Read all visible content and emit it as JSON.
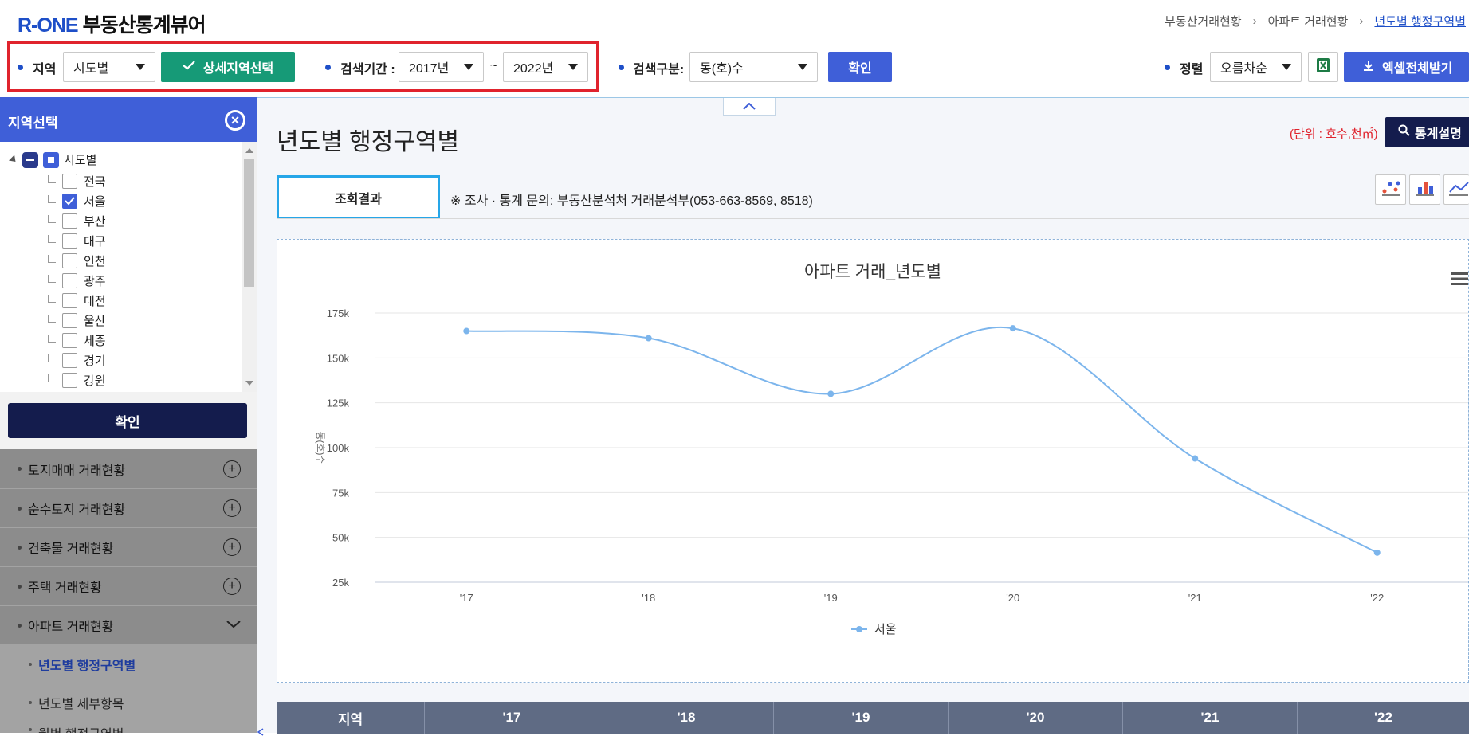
{
  "header": {
    "brand": "R-ONE",
    "app_name": "부동산통계뷰어",
    "breadcrumbs": [
      "부동산거래현황",
      "아파트 거래현황",
      "년도별 행정구역별"
    ]
  },
  "filters": {
    "region_label": "지역",
    "region_value": "시도별",
    "detail_region_button": "상세지역선택",
    "period_label": "검색기간 :",
    "period_from": "2017년",
    "period_sep": "~",
    "period_to": "2022년",
    "search_type_label": "검색구분:",
    "search_type_value": "동(호)수",
    "confirm_button": "확인",
    "sort_label": "정렬",
    "sort_value": "오름차순",
    "excel_all_button": "엑셀전체받기"
  },
  "sidebar": {
    "region_panel_title": "지역선택",
    "tree_root": "시도별",
    "tree_items": [
      {
        "label": "전국",
        "checked": false
      },
      {
        "label": "서울",
        "checked": true
      },
      {
        "label": "부산",
        "checked": false
      },
      {
        "label": "대구",
        "checked": false
      },
      {
        "label": "인천",
        "checked": false
      },
      {
        "label": "광주",
        "checked": false
      },
      {
        "label": "대전",
        "checked": false
      },
      {
        "label": "울산",
        "checked": false
      },
      {
        "label": "세종",
        "checked": false
      },
      {
        "label": "경기",
        "checked": false
      },
      {
        "label": "강원",
        "checked": false
      }
    ],
    "confirm_button": "확인",
    "menu": [
      "토지매매 거래현황",
      "순수토지 거래현황",
      "건축물 거래현황",
      "주택 거래현황",
      "아파트 거래현황"
    ],
    "submenu": [
      "년도별 행정구역별",
      "년도별 세부항목",
      "월별 행정구역별"
    ]
  },
  "main": {
    "page_title": "년도별 행정구역별",
    "unit": "(단위 : 호수,천㎡)",
    "stat_button": "통계설명",
    "result_tab": "조회결과",
    "inquiry": "※ 조사 · 통계 문의: 부동산분석처 거래분석부(053-663-8569, 8518)"
  },
  "chart_data": {
    "type": "line",
    "title": "아파트 거래_년도별",
    "ylabel": "동(호)수",
    "xlabel": "",
    "categories": [
      "'17",
      "'18",
      "'19",
      "'20",
      "'21",
      "'22"
    ],
    "y_ticks": [
      "25k",
      "50k",
      "75k",
      "100k",
      "125k",
      "150k",
      "175k"
    ],
    "ylim": [
      25000,
      175000
    ],
    "series": [
      {
        "name": "서울",
        "color": "#7cb5ec",
        "values": [
          165000,
          161000,
          130000,
          166500,
          94000,
          41500
        ]
      }
    ],
    "legend": "bottom-center"
  },
  "table": {
    "headers": [
      "지역",
      "'17",
      "'18",
      "'19",
      "'20",
      "'21",
      "'22"
    ]
  }
}
